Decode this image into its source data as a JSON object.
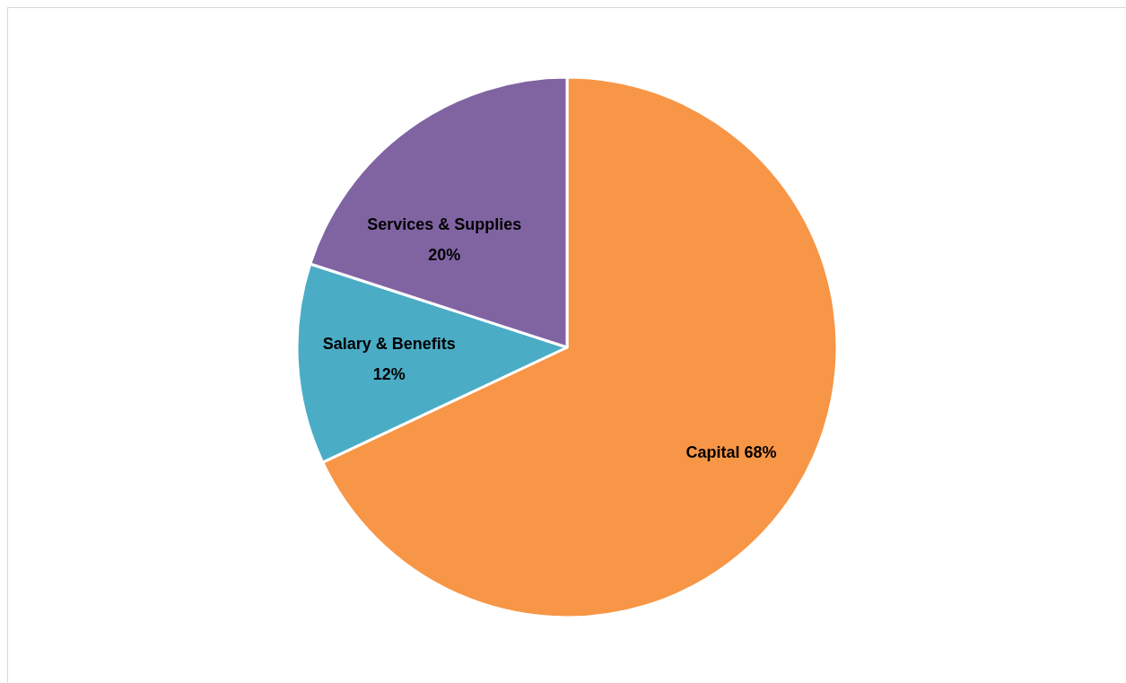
{
  "chart_data": {
    "type": "pie",
    "categories": [
      "Capital",
      "Salary & Benefits",
      "Services & Supplies"
    ],
    "values": [
      68,
      12,
      20
    ],
    "colors": [
      "#f79646",
      "#4bacc6",
      "#8064a2"
    ],
    "value_labels": [
      "68%",
      "12%",
      "20%"
    ]
  }
}
